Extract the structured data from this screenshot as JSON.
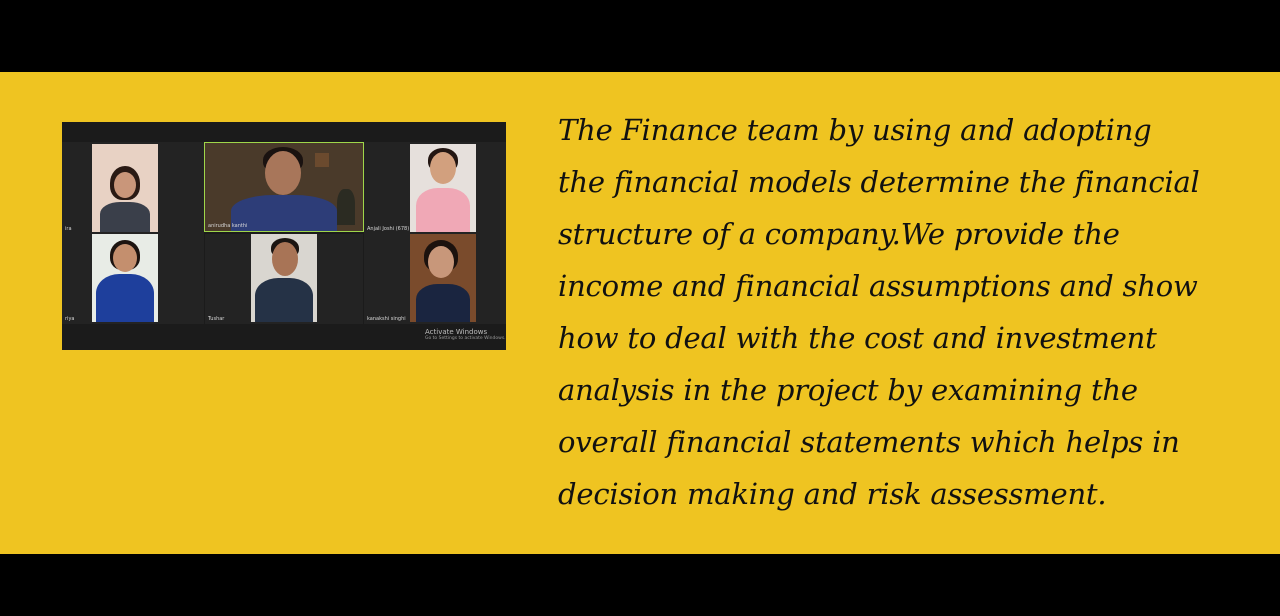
{
  "call": {
    "participants": [
      {
        "name": "ira"
      },
      {
        "name": "anirudha kanthi"
      },
      {
        "name": "Anjali Joshi (678)"
      },
      {
        "name": "riya"
      },
      {
        "name": "Tushar"
      },
      {
        "name": "kanakshi singhi"
      }
    ],
    "watermark": {
      "title": "Activate Windows",
      "subtitle": "Go to Settings to activate Windows."
    }
  },
  "caption": {
    "lines": [
      "The Finance team by using and adopting",
      "the financial models determine the financial",
      "structure of a company.We provide the",
      "income and financial assumptions and show",
      "how to deal with the cost and investment",
      "analysis in the project by examining the",
      "overall financial statements which helps in",
      "decision making and risk assessment."
    ]
  },
  "colors": {
    "background": "#efc421",
    "letterbox": "#000000",
    "active_speaker": "#9fd64a"
  }
}
